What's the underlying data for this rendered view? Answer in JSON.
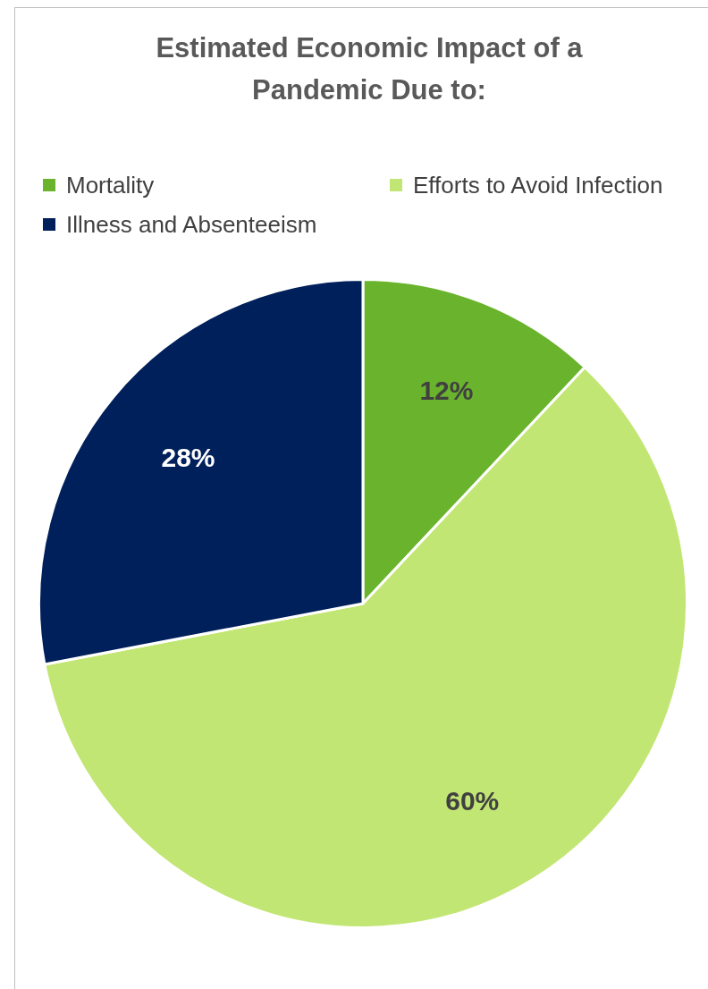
{
  "chart_data": {
    "type": "pie",
    "title": "Estimated Economic Impact of a Pandemic Due to:",
    "categories": [
      "Mortality",
      "Efforts to Avoid Infection",
      "Illness and Absenteeism"
    ],
    "values": [
      12,
      60,
      28
    ],
    "colors": [
      "#6ab42d",
      "#c2e673",
      "#00205b"
    ],
    "value_labels": [
      "12%",
      "60%",
      "28%"
    ],
    "legend": "top"
  }
}
